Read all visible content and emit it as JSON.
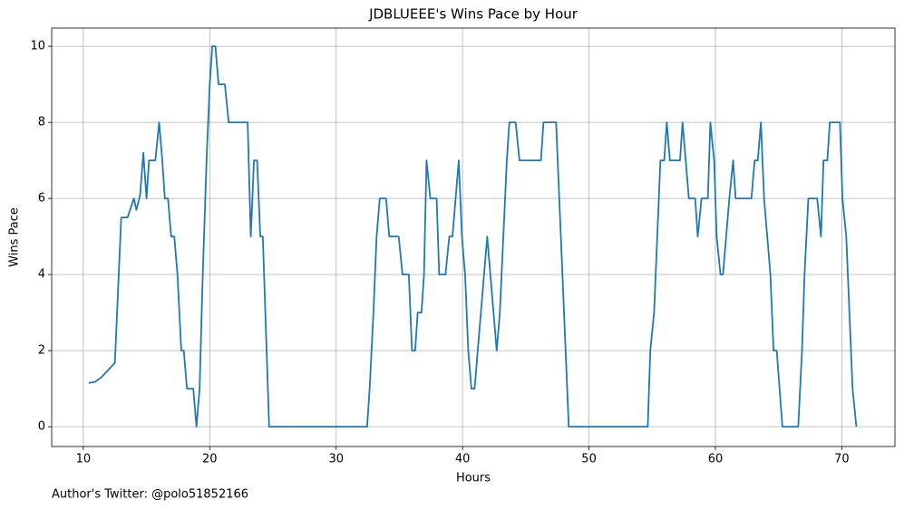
{
  "chart_data": {
    "type": "line",
    "title": "JDBLUEEE's Wins Pace by Hour",
    "x_label": "Hours",
    "y_label": "Wins Pace",
    "footnote": "Author's Twitter: @polo51852166",
    "color": "#1f77b4",
    "grid": true,
    "xlim": [
      7.5,
      74.2
    ],
    "ylim": [
      -0.52,
      10.48
    ],
    "xticks": [
      10,
      20,
      30,
      40,
      50,
      60,
      70
    ],
    "yticks": [
      0,
      2,
      4,
      6,
      8,
      10
    ],
    "x": [
      10.43,
      10.93,
      11.43,
      12.0,
      12.5,
      13.0,
      13.5,
      14.0,
      14.2,
      14.5,
      14.75,
      15.0,
      15.2,
      15.7,
      16.0,
      16.25,
      16.45,
      16.7,
      16.95,
      17.2,
      17.45,
      17.75,
      17.95,
      18.2,
      18.7,
      18.95,
      19.2,
      19.45,
      19.75,
      20.0,
      20.2,
      20.45,
      20.7,
      21.2,
      21.5,
      23.0,
      23.25,
      23.5,
      23.75,
      24.0,
      24.2,
      24.5,
      24.7,
      32.45,
      32.65,
      32.95,
      33.2,
      33.45,
      33.95,
      34.2,
      34.95,
      35.25,
      35.75,
      36.0,
      36.25,
      36.45,
      36.75,
      36.95,
      37.15,
      37.45,
      37.95,
      38.15,
      38.65,
      38.95,
      39.2,
      39.7,
      39.95,
      40.2,
      40.45,
      40.7,
      40.95,
      41.95,
      42.7,
      42.95,
      43.5,
      43.7,
      44.2,
      44.5,
      46.2,
      46.4,
      47.4,
      48.4,
      54.65,
      54.85,
      55.15,
      55.65,
      55.95,
      56.15,
      56.4,
      57.2,
      57.4,
      57.9,
      58.4,
      58.6,
      58.9,
      59.4,
      59.6,
      59.9,
      60.1,
      60.4,
      60.6,
      61.1,
      61.4,
      61.6,
      62.85,
      63.1,
      63.35,
      63.6,
      63.85,
      64.35,
      64.6,
      64.85,
      65.3,
      66.55,
      66.85,
      67.05,
      67.35,
      68.05,
      68.35,
      68.55,
      68.85,
      69.05,
      69.85,
      70.05,
      70.35,
      70.85,
      71.15
    ],
    "values": [
      1.15,
      1.18,
      1.3,
      1.5,
      1.68,
      5.5,
      5.5,
      6.0,
      5.7,
      6.1,
      7.2,
      6.0,
      7.0,
      7.0,
      8.0,
      7.0,
      6.0,
      6.0,
      5.0,
      5.0,
      4.0,
      2.0,
      2.0,
      1.0,
      1.0,
      0,
      1.0,
      4.0,
      7.0,
      9.0,
      10,
      10,
      9,
      9,
      8,
      8,
      5,
      7,
      7,
      5,
      5,
      2,
      0,
      0,
      1,
      3,
      5,
      6,
      6,
      5,
      5,
      4,
      4,
      2,
      2,
      3,
      3,
      4,
      7,
      6,
      6,
      4,
      4,
      5,
      5,
      7,
      5,
      4,
      2,
      1,
      1,
      5,
      2,
      3,
      7,
      8,
      8,
      7,
      7,
      8,
      8,
      0,
      0,
      2,
      3,
      7,
      7,
      8,
      7,
      7,
      8,
      6,
      6,
      5,
      6,
      6,
      8,
      7,
      5,
      4,
      4,
      6,
      7,
      6,
      6,
      7,
      7,
      8,
      6,
      4,
      2,
      2,
      0,
      0,
      2,
      4,
      6,
      6,
      5,
      7,
      7,
      8,
      8,
      6,
      5,
      1,
      0
    ]
  }
}
